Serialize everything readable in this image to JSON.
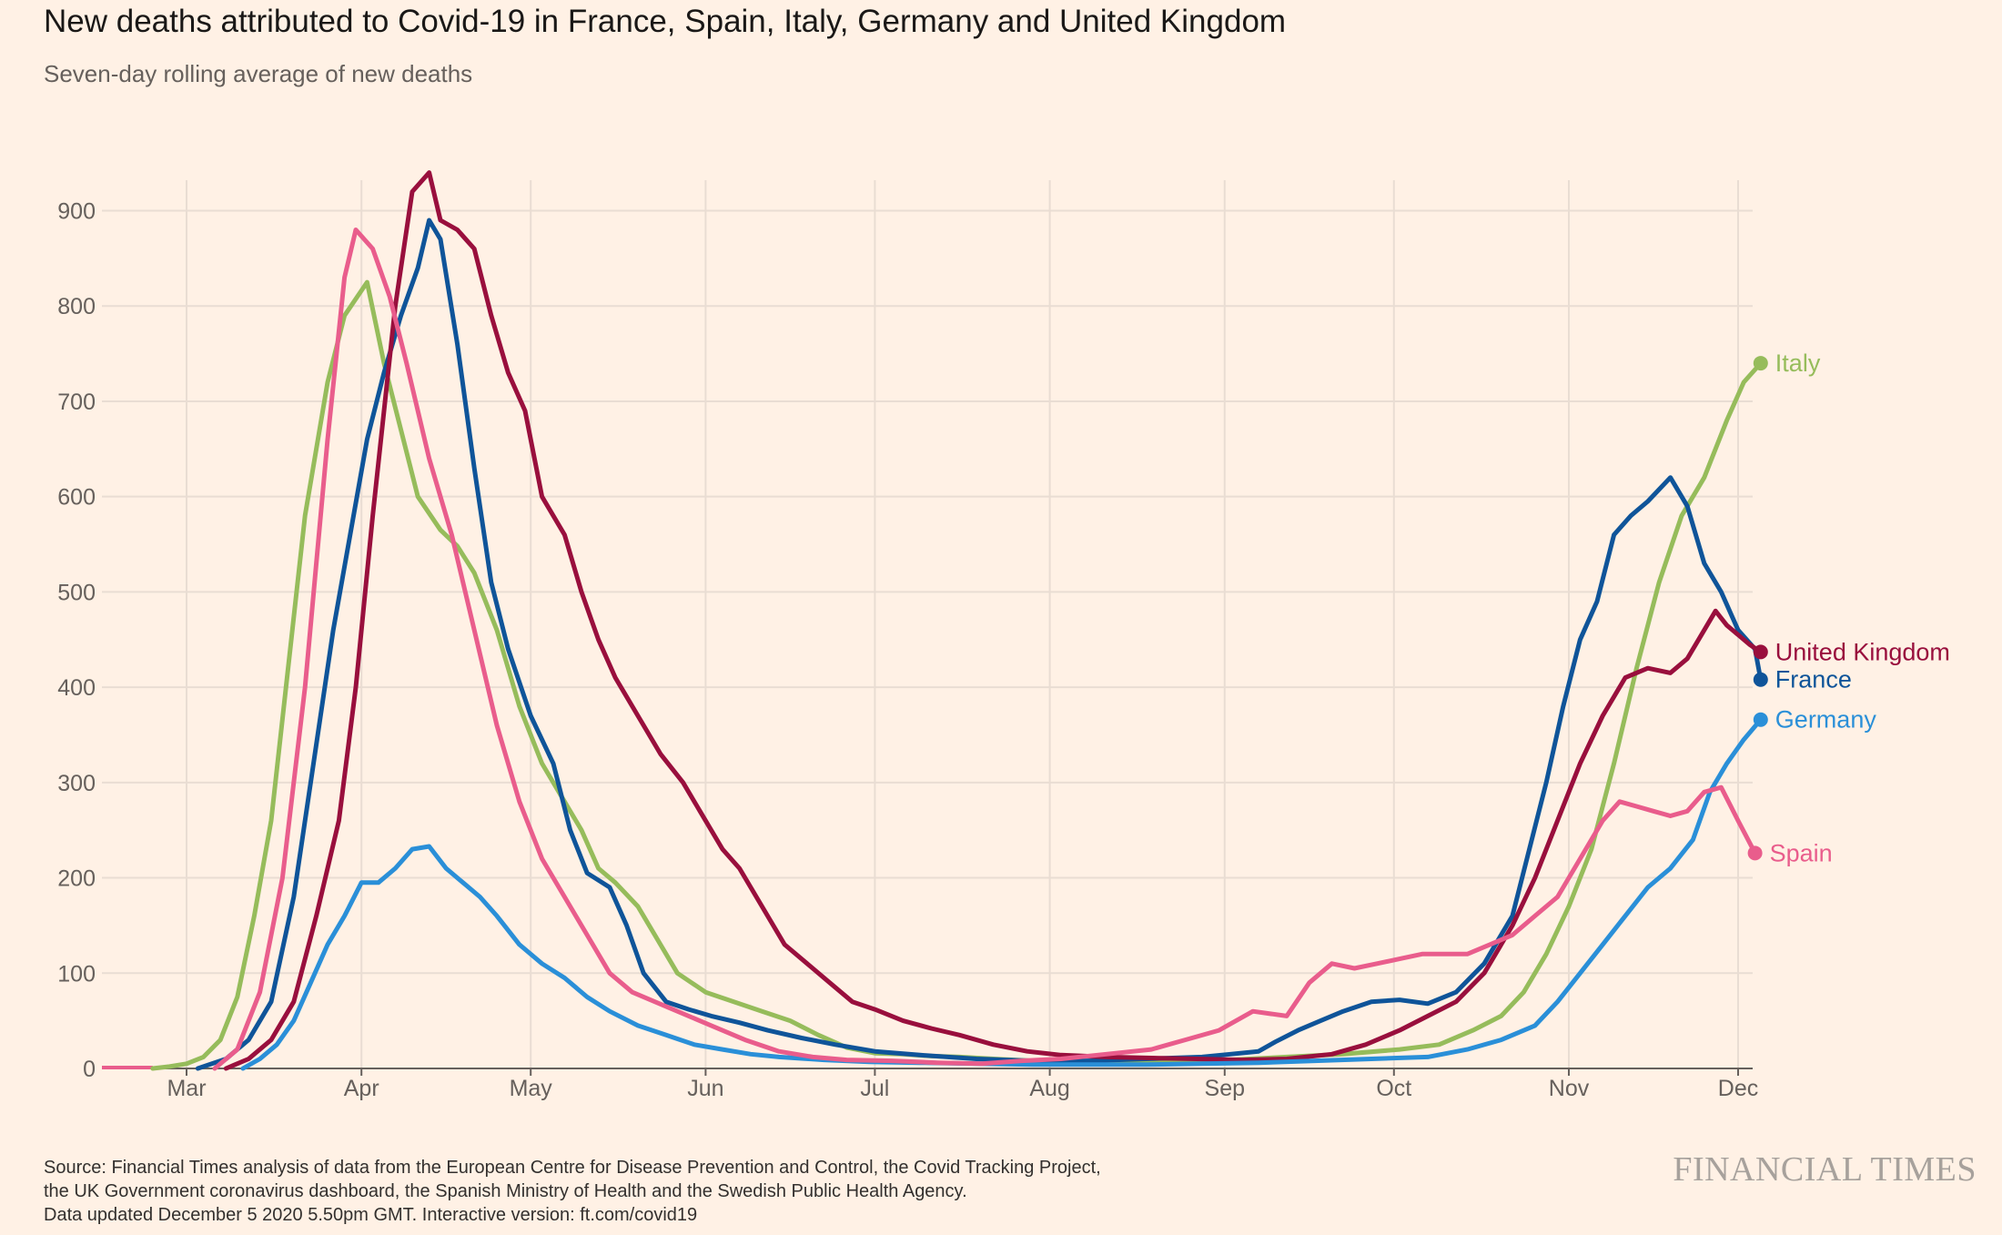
{
  "title": "New deaths attributed to Covid-19 in France, Spain, Italy, Germany and United Kingdom",
  "subtitle": "Seven-day rolling average of new deaths",
  "source_lines": [
    "Source: Financial Times analysis of data from the European Centre for Disease Prevention and Control, the Covid Tracking Project,",
    "the UK Government coronavirus dashboard, the Spanish Ministry of Health and the Swedish Public Health Agency.",
    "Data updated December 5 2020 5.50pm GMT. Interactive version: ft.com/covid19"
  ],
  "logo": "FINANCIAL TIMES",
  "chart_data": {
    "type": "line",
    "x_unit": "days since Feb 15 2020",
    "xlim": [
      0,
      294
    ],
    "ylim": [
      0,
      940
    ],
    "y_ticks": [
      0,
      100,
      200,
      300,
      400,
      500,
      600,
      700,
      800,
      900
    ],
    "x_ticks": [
      {
        "label": "Mar",
        "x": 15
      },
      {
        "label": "Apr",
        "x": 46
      },
      {
        "label": "May",
        "x": 76
      },
      {
        "label": "Jun",
        "x": 107
      },
      {
        "label": "Jul",
        "x": 137
      },
      {
        "label": "Aug",
        "x": 168
      },
      {
        "label": "Sep",
        "x": 199
      },
      {
        "label": "Oct",
        "x": 229
      },
      {
        "label": "Nov",
        "x": 260
      },
      {
        "label": "Dec",
        "x": 290
      }
    ],
    "grid": true,
    "legend": "end-labels",
    "series": [
      {
        "name": "Italy",
        "color": "#96bc5b",
        "label_value": 740,
        "points": [
          [
            9,
            0
          ],
          [
            12,
            2
          ],
          [
            15,
            5
          ],
          [
            18,
            12
          ],
          [
            21,
            30
          ],
          [
            24,
            75
          ],
          [
            27,
            160
          ],
          [
            30,
            260
          ],
          [
            33,
            420
          ],
          [
            36,
            580
          ],
          [
            40,
            720
          ],
          [
            43,
            790
          ],
          [
            47,
            825
          ],
          [
            50,
            740
          ],
          [
            53,
            670
          ],
          [
            56,
            600
          ],
          [
            60,
            565
          ],
          [
            63,
            548
          ],
          [
            66,
            520
          ],
          [
            70,
            460
          ],
          [
            74,
            380
          ],
          [
            78,
            320
          ],
          [
            82,
            280
          ],
          [
            85,
            250
          ],
          [
            88,
            210
          ],
          [
            91,
            195
          ],
          [
            95,
            170
          ],
          [
            98,
            140
          ],
          [
            102,
            100
          ],
          [
            107,
            80
          ],
          [
            112,
            70
          ],
          [
            117,
            60
          ],
          [
            122,
            50
          ],
          [
            127,
            35
          ],
          [
            132,
            22
          ],
          [
            137,
            16
          ],
          [
            142,
            15
          ],
          [
            147,
            13
          ],
          [
            152,
            12
          ],
          [
            158,
            10
          ],
          [
            165,
            8
          ],
          [
            172,
            7
          ],
          [
            180,
            7
          ],
          [
            190,
            8
          ],
          [
            200,
            9
          ],
          [
            210,
            12
          ],
          [
            220,
            15
          ],
          [
            230,
            20
          ],
          [
            237,
            25
          ],
          [
            243,
            40
          ],
          [
            248,
            55
          ],
          [
            252,
            80
          ],
          [
            256,
            120
          ],
          [
            260,
            170
          ],
          [
            264,
            230
          ],
          [
            268,
            320
          ],
          [
            272,
            420
          ],
          [
            276,
            510
          ],
          [
            280,
            580
          ],
          [
            284,
            620
          ],
          [
            288,
            680
          ],
          [
            291,
            720
          ],
          [
            294,
            740
          ]
        ]
      },
      {
        "name": "France",
        "color": "#0f5499",
        "label_value": 408,
        "points": [
          [
            17,
            0
          ],
          [
            22,
            10
          ],
          [
            26,
            30
          ],
          [
            30,
            70
          ],
          [
            34,
            180
          ],
          [
            38,
            340
          ],
          [
            41,
            460
          ],
          [
            44,
            560
          ],
          [
            47,
            660
          ],
          [
            50,
            730
          ],
          [
            53,
            790
          ],
          [
            56,
            840
          ],
          [
            58,
            890
          ],
          [
            60,
            870
          ],
          [
            63,
            760
          ],
          [
            66,
            630
          ],
          [
            69,
            510
          ],
          [
            72,
            440
          ],
          [
            76,
            370
          ],
          [
            80,
            320
          ],
          [
            83,
            250
          ],
          [
            86,
            205
          ],
          [
            90,
            190
          ],
          [
            93,
            150
          ],
          [
            96,
            100
          ],
          [
            100,
            70
          ],
          [
            104,
            62
          ],
          [
            108,
            55
          ],
          [
            113,
            48
          ],
          [
            118,
            40
          ],
          [
            124,
            32
          ],
          [
            130,
            25
          ],
          [
            137,
            18
          ],
          [
            145,
            14
          ],
          [
            155,
            10
          ],
          [
            165,
            8
          ],
          [
            175,
            8
          ],
          [
            185,
            10
          ],
          [
            195,
            12
          ],
          [
            200,
            15
          ],
          [
            205,
            18
          ],
          [
            208,
            28
          ],
          [
            212,
            40
          ],
          [
            216,
            50
          ],
          [
            220,
            60
          ],
          [
            225,
            70
          ],
          [
            230,
            72
          ],
          [
            235,
            68
          ],
          [
            240,
            80
          ],
          [
            245,
            110
          ],
          [
            250,
            160
          ],
          [
            253,
            230
          ],
          [
            256,
            300
          ],
          [
            259,
            380
          ],
          [
            262,
            450
          ],
          [
            265,
            490
          ],
          [
            268,
            560
          ],
          [
            271,
            580
          ],
          [
            274,
            595
          ],
          [
            278,
            620
          ],
          [
            281,
            590
          ],
          [
            284,
            530
          ],
          [
            287,
            500
          ],
          [
            290,
            460
          ],
          [
            293,
            440
          ],
          [
            294,
            408
          ]
        ]
      },
      {
        "name": "United Kingdom",
        "color": "#990f3d",
        "label_value": 437,
        "points": [
          [
            22,
            0
          ],
          [
            26,
            10
          ],
          [
            30,
            30
          ],
          [
            34,
            70
          ],
          [
            38,
            160
          ],
          [
            42,
            260
          ],
          [
            45,
            400
          ],
          [
            48,
            580
          ],
          [
            52,
            800
          ],
          [
            55,
            920
          ],
          [
            58,
            940
          ],
          [
            60,
            890
          ],
          [
            63,
            880
          ],
          [
            66,
            860
          ],
          [
            69,
            790
          ],
          [
            72,
            730
          ],
          [
            75,
            690
          ],
          [
            78,
            600
          ],
          [
            82,
            560
          ],
          [
            85,
            500
          ],
          [
            88,
            450
          ],
          [
            91,
            410
          ],
          [
            95,
            370
          ],
          [
            99,
            330
          ],
          [
            103,
            300
          ],
          [
            106,
            270
          ],
          [
            110,
            230
          ],
          [
            113,
            210
          ],
          [
            117,
            170
          ],
          [
            121,
            130
          ],
          [
            125,
            110
          ],
          [
            129,
            90
          ],
          [
            133,
            70
          ],
          [
            137,
            62
          ],
          [
            142,
            50
          ],
          [
            147,
            42
          ],
          [
            152,
            35
          ],
          [
            158,
            25
          ],
          [
            164,
            18
          ],
          [
            170,
            14
          ],
          [
            178,
            12
          ],
          [
            186,
            11
          ],
          [
            194,
            10
          ],
          [
            202,
            9
          ],
          [
            210,
            10
          ],
          [
            218,
            15
          ],
          [
            224,
            25
          ],
          [
            230,
            40
          ],
          [
            235,
            55
          ],
          [
            240,
            70
          ],
          [
            245,
            100
          ],
          [
            250,
            150
          ],
          [
            254,
            200
          ],
          [
            258,
            260
          ],
          [
            262,
            320
          ],
          [
            266,
            370
          ],
          [
            270,
            410
          ],
          [
            274,
            420
          ],
          [
            278,
            415
          ],
          [
            281,
            430
          ],
          [
            284,
            460
          ],
          [
            286,
            480
          ],
          [
            288,
            465
          ],
          [
            290,
            455
          ],
          [
            292,
            445
          ],
          [
            294,
            437
          ]
        ]
      },
      {
        "name": "Germany",
        "color": "#2a8fd8",
        "label_value": 366,
        "points": [
          [
            25,
            0
          ],
          [
            28,
            10
          ],
          [
            31,
            25
          ],
          [
            34,
            50
          ],
          [
            37,
            90
          ],
          [
            40,
            130
          ],
          [
            43,
            160
          ],
          [
            46,
            195
          ],
          [
            49,
            195
          ],
          [
            52,
            210
          ],
          [
            55,
            230
          ],
          [
            58,
            233
          ],
          [
            61,
            210
          ],
          [
            64,
            195
          ],
          [
            67,
            180
          ],
          [
            70,
            160
          ],
          [
            74,
            130
          ],
          [
            78,
            110
          ],
          [
            82,
            95
          ],
          [
            86,
            75
          ],
          [
            90,
            60
          ],
          [
            95,
            45
          ],
          [
            100,
            35
          ],
          [
            105,
            25
          ],
          [
            110,
            20
          ],
          [
            115,
            15
          ],
          [
            120,
            12
          ],
          [
            128,
            9
          ],
          [
            136,
            7
          ],
          [
            145,
            6
          ],
          [
            155,
            5
          ],
          [
            165,
            4
          ],
          [
            175,
            4
          ],
          [
            185,
            4
          ],
          [
            195,
            5
          ],
          [
            205,
            6
          ],
          [
            215,
            8
          ],
          [
            225,
            10
          ],
          [
            235,
            12
          ],
          [
            242,
            20
          ],
          [
            248,
            30
          ],
          [
            254,
            45
          ],
          [
            258,
            70
          ],
          [
            262,
            100
          ],
          [
            266,
            130
          ],
          [
            270,
            160
          ],
          [
            274,
            190
          ],
          [
            278,
            210
          ],
          [
            282,
            240
          ],
          [
            285,
            290
          ],
          [
            288,
            320
          ],
          [
            291,
            345
          ],
          [
            294,
            366
          ]
        ]
      },
      {
        "name": "Spain",
        "color": "#e95d8c",
        "label_value": 226,
        "points": [
          [
            20,
            0
          ],
          [
            24,
            20
          ],
          [
            28,
            80
          ],
          [
            32,
            200
          ],
          [
            36,
            400
          ],
          [
            40,
            660
          ],
          [
            43,
            830
          ],
          [
            45,
            880
          ],
          [
            48,
            860
          ],
          [
            51,
            810
          ],
          [
            54,
            740
          ],
          [
            58,
            640
          ],
          [
            62,
            560
          ],
          [
            66,
            460
          ],
          [
            70,
            360
          ],
          [
            74,
            280
          ],
          [
            78,
            220
          ],
          [
            82,
            180
          ],
          [
            86,
            140
          ],
          [
            90,
            100
          ],
          [
            94,
            80
          ],
          [
            98,
            70
          ],
          [
            102,
            60
          ],
          [
            108,
            45
          ],
          [
            114,
            30
          ],
          [
            120,
            18
          ],
          [
            126,
            12
          ],
          [
            132,
            9
          ],
          [
            140,
            8
          ],
          [
            148,
            6
          ],
          [
            156,
            5
          ],
          [
            163,
            8
          ],
          [
            170,
            10
          ],
          [
            178,
            15
          ],
          [
            186,
            20
          ],
          [
            192,
            30
          ],
          [
            198,
            40
          ],
          [
            204,
            60
          ],
          [
            210,
            55
          ],
          [
            214,
            90
          ],
          [
            218,
            110
          ],
          [
            222,
            105
          ],
          [
            226,
            110
          ],
          [
            230,
            115
          ],
          [
            234,
            120
          ],
          [
            238,
            120
          ],
          [
            242,
            120
          ],
          [
            246,
            130
          ],
          [
            250,
            140
          ],
          [
            254,
            160
          ],
          [
            258,
            180
          ],
          [
            262,
            220
          ],
          [
            266,
            260
          ],
          [
            269,
            280
          ],
          [
            272,
            275
          ],
          [
            275,
            270
          ],
          [
            278,
            265
          ],
          [
            281,
            270
          ],
          [
            284,
            290
          ],
          [
            287,
            295
          ],
          [
            290,
            260
          ],
          [
            293,
            226
          ]
        ]
      }
    ]
  }
}
